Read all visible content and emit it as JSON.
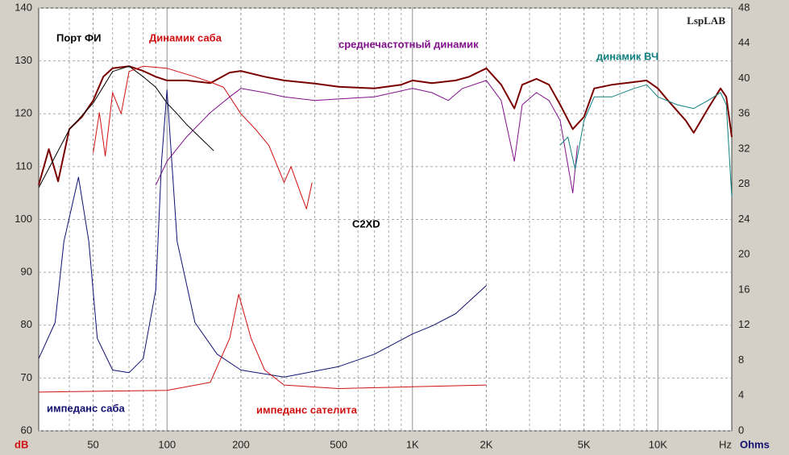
{
  "chart_data": {
    "type": "line",
    "annotations": {
      "center": "C2XD",
      "brand": "LspLAB"
    },
    "xlabel": "Hz",
    "ylabel": "dB",
    "y2label": "Ohms",
    "xscale": "log",
    "grid": true,
    "xlim": [
      30,
      20000
    ],
    "ylim": [
      60,
      140
    ],
    "y2lim": [
      0,
      48
    ],
    "xticks": [
      50,
      100,
      200,
      500,
      {
        "value": 1000,
        "label": "1K"
      },
      {
        "value": 2000,
        "label": "2K"
      },
      {
        "value": 5000,
        "label": "5K"
      },
      {
        "value": 10000,
        "label": "10K"
      }
    ],
    "xminor": [
      40,
      60,
      70,
      80,
      90,
      300,
      400,
      600,
      700,
      800,
      900,
      3000,
      4000,
      6000,
      7000,
      8000,
      9000
    ],
    "yticks": [
      60,
      70,
      80,
      90,
      100,
      110,
      120,
      130,
      140
    ],
    "y2ticks": [
      0,
      4,
      8,
      12,
      16,
      20,
      24,
      28,
      32,
      36,
      40,
      44,
      48
    ],
    "series": [
      {
        "color": "#7a0000",
        "width": 2,
        "x": [
          30,
          33,
          36,
          40,
          45,
          50,
          55,
          60,
          70,
          80,
          90,
          100,
          120,
          150,
          180,
          200,
          250,
          300,
          400,
          500,
          700,
          900,
          1000,
          1200,
          1500,
          1700,
          2000,
          2300,
          2600,
          2800,
          3200,
          3600,
          4000,
          4500,
          5000,
          5500,
          6500,
          8000,
          9000,
          10000,
          11000,
          13000,
          14000,
          16000,
          18000,
          19000,
          20000
        ],
        "values": [
          106.5,
          113.3,
          107.2,
          117.1,
          119.4,
          122.5,
          127,
          128.6,
          129,
          128.1,
          127,
          126.3,
          126.3,
          125.8,
          127.8,
          128.1,
          127,
          126.3,
          125.7,
          125.1,
          124.8,
          125.5,
          126.3,
          125.8,
          126.3,
          127,
          128.6,
          125.5,
          121,
          125.5,
          126.6,
          125.5,
          121.7,
          117.1,
          119.4,
          124.8,
          125.5,
          126,
          126.3,
          124.8,
          122.5,
          118.7,
          116.4,
          121,
          124.8,
          123.2,
          115.6
        ]
      },
      {
        "name": "Порт ФИ",
        "color": "#000000",
        "width": 1,
        "x": [
          30,
          40,
          50,
          60,
          70,
          80,
          90,
          100,
          110,
          120,
          140,
          155
        ],
        "values": [
          106,
          117,
          122,
          128,
          129,
          127,
          125,
          122,
          120,
          118,
          115,
          113
        ]
      },
      {
        "name": "Динамик саба",
        "color": "#d01010",
        "width": 1,
        "x": [
          50,
          53,
          56,
          60,
          65,
          70,
          80,
          100,
          130,
          150,
          170,
          200,
          230,
          260,
          300,
          320,
          350,
          370,
          390
        ],
        "values": [
          112.6,
          120.2,
          112,
          124,
          120,
          128,
          129,
          128.6,
          127,
          126,
          125,
          120,
          117,
          114,
          107,
          110,
          105,
          102,
          107
        ]
      },
      {
        "name": "среднечастотный динамик",
        "color": "#80108a",
        "width": 1,
        "x": [
          90,
          100,
          120,
          150,
          180,
          200,
          250,
          300,
          400,
          500,
          700,
          1000,
          1200,
          1400,
          1600,
          2000,
          2300,
          2600,
          2800,
          3200,
          3600,
          4000,
          4500,
          4700
        ],
        "values": [
          106.5,
          111,
          115.6,
          120.2,
          123.2,
          124.8,
          124,
          123.2,
          122.5,
          122.8,
          123.2,
          124.8,
          124,
          122.5,
          124.8,
          126.3,
          122.5,
          111,
          121.7,
          124,
          122.5,
          118.7,
          105,
          114
        ]
      },
      {
        "name": "динамик ВЧ",
        "color": "#108080",
        "width": 1,
        "x": [
          4000,
          4300,
          4600,
          5000,
          5500,
          6500,
          8000,
          9000,
          10000,
          12000,
          14000,
          16000,
          18000,
          19000,
          20000
        ],
        "values": [
          114.1,
          115.6,
          109.5,
          118.7,
          123.2,
          123.2,
          124.8,
          125.5,
          123.2,
          121.7,
          121,
          122.5,
          124,
          121.7,
          104.2
        ]
      },
      {
        "name": "импеданс саба",
        "color": "#101070",
        "width": 1,
        "axis": "y2",
        "x": [
          30,
          35,
          38,
          43.6,
          48,
          52,
          60,
          70,
          80,
          90,
          95,
          100,
          110,
          130,
          160,
          200,
          300,
          500,
          700,
          1000,
          1200,
          1500,
          2000
        ],
        "values": [
          8.2,
          12.3,
          21.5,
          28.8,
          21.5,
          10.5,
          6.9,
          6.6,
          8.2,
          16,
          30.6,
          38.7,
          21.5,
          12.3,
          8.7,
          6.9,
          6.1,
          7.3,
          8.7,
          11,
          11.9,
          13.3,
          16.5
        ]
      },
      {
        "name": "импеданс сателита",
        "color": "#d01010",
        "width": 1,
        "axis": "y2",
        "x": [
          30,
          100,
          150,
          180,
          196,
          220,
          250,
          300,
          500,
          1000,
          2000
        ],
        "values": [
          4.4,
          4.6,
          5.5,
          10.5,
          15.5,
          10.5,
          6.9,
          5.2,
          4.8,
          5,
          5.2
        ]
      }
    ]
  }
}
